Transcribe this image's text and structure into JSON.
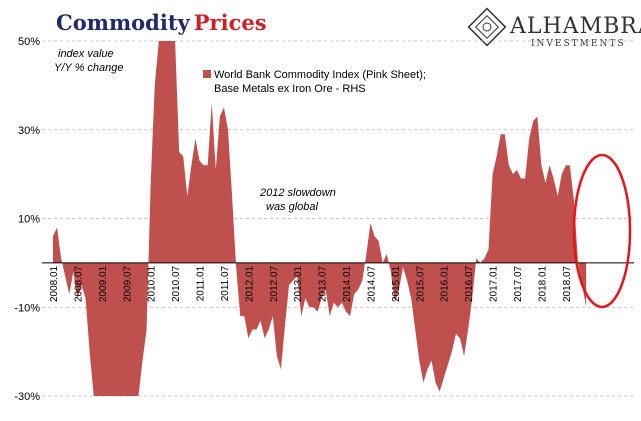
{
  "title": {
    "part1": "Commodity",
    "part2": "Prices"
  },
  "logo": {
    "name": "ALHAMBRA",
    "sub": "INVESTMENTS"
  },
  "colors": {
    "series": "#c0504d",
    "title_dark": "#1f2a66",
    "title_red": "#cc2127",
    "circle": "#e8141a",
    "grid": "#b3b3b3"
  },
  "chart_data": {
    "type": "area",
    "y_axis_label_lines": [
      "index value",
      "Y/Y % change"
    ],
    "ylim": [
      -30,
      50
    ],
    "y_ticks": [
      50,
      30,
      10,
      -10,
      -30
    ],
    "y_tick_labels": [
      "50%",
      "30%",
      "10%",
      "-10%",
      "-30%"
    ],
    "grid": "dashed-horizontal",
    "x_tick_labels": [
      "2008.01",
      "2008.07",
      "2009.01",
      "2009.07",
      "2010.01",
      "2010.07",
      "2011.01",
      "2011.07",
      "2012.01",
      "2012.07",
      "2013.01",
      "2013.07",
      "2014.01",
      "2014.07",
      "2015.01",
      "2015.07",
      "2016.01",
      "2016.07",
      "2017.01",
      "2017.07",
      "2018.01",
      "2018.07"
    ],
    "series": [
      {
        "name": "World Bank Commodity Index (Pink Sheet); Base Metals ex Iron Ore - RHS",
        "x_start": "2008.01",
        "frequency": "monthly",
        "values": [
          6,
          8,
          1,
          -3,
          -7,
          -2,
          -8,
          -5,
          -8,
          -20,
          -30,
          -30,
          -30,
          -30,
          -30,
          -30,
          -30,
          -30,
          -30,
          -30,
          -30,
          -30,
          -22,
          -15,
          18,
          40,
          50,
          50,
          50,
          50,
          50,
          25,
          24,
          15,
          22,
          28,
          23,
          22,
          22,
          36,
          21,
          33,
          35,
          30,
          15,
          -1,
          -12,
          -12,
          -17,
          -15,
          -15,
          -13,
          -17,
          -15,
          -12,
          -21,
          -24,
          -14,
          -5,
          -4,
          -3,
          -12,
          -8,
          -10,
          -10,
          -11,
          -8,
          -6,
          -12,
          -9,
          -10,
          -9,
          -11,
          -12,
          -7,
          -6,
          -4,
          2,
          9,
          6,
          5,
          0,
          2,
          -2,
          -9,
          -6,
          -1,
          -4,
          -8,
          -15,
          -22,
          -27,
          -24,
          -22,
          -27,
          -29,
          -26,
          -23,
          -20,
          -16,
          -17,
          -21,
          -15,
          -8,
          1,
          0,
          1,
          3,
          20,
          24,
          29,
          29,
          22,
          20,
          21,
          19,
          19,
          28,
          32,
          33,
          22,
          18,
          22,
          19,
          15,
          20,
          22,
          22,
          14,
          0,
          -5,
          -10
        ]
      }
    ],
    "annotations": [
      {
        "text_lines": [
          "2012 slowdown",
          "was global"
        ]
      }
    ]
  }
}
